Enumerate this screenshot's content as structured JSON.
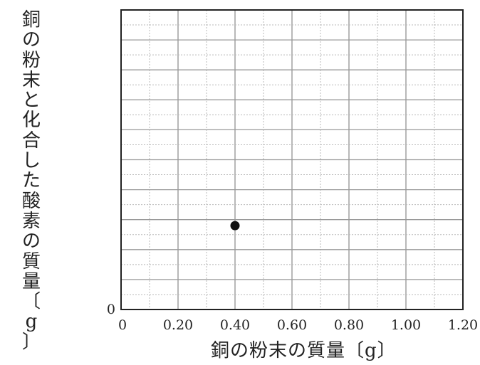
{
  "chart_data": {
    "type": "scatter",
    "xlabel": "銅の粉末の質量〔g〕",
    "ylabel": "銅の粉末と化合した酸素の質量〔g〕",
    "x_ticks": [
      "0.20",
      "0.40",
      "0.60",
      "0.80",
      "1.00",
      "1.20"
    ],
    "origin_x_label": "0",
    "origin_y_label": "0",
    "xlim": [
      0,
      1.2
    ],
    "y_minor_gridlines": 20,
    "x_minor_gridlines": 12,
    "grid": true,
    "series": [
      {
        "x": [
          0.4
        ],
        "y_fraction_of_axis": [
          0.28
        ]
      }
    ],
    "colors": {
      "grid_major": "#9a9a9a",
      "grid_minor": "#b8b8b8",
      "point": "#111111",
      "frame": "#222222"
    }
  }
}
